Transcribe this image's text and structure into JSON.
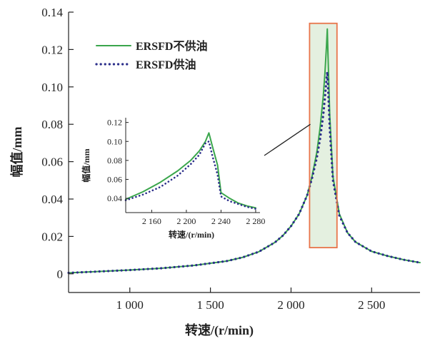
{
  "chart_data": [
    {
      "type": "line",
      "title": "",
      "xlabel": "转速/(r/min)",
      "ylabel": "幅值/mm",
      "xlim": [
        620,
        2800
      ],
      "ylim": [
        -0.01,
        0.14
      ],
      "x_ticks": [
        1000,
        1500,
        2000,
        2500
      ],
      "x_tick_labels": [
        "1 000",
        "1 500",
        "2 000",
        "2 500"
      ],
      "y_ticks": [
        0,
        0.02,
        0.04,
        0.06,
        0.08,
        0.1,
        0.12,
        0.14
      ],
      "y_tick_labels": [
        "0",
        "0.02",
        "0.04",
        "0.06",
        "0.08",
        "0.10",
        "0.12",
        "0.14"
      ],
      "legend_position": "top-left",
      "grid": false,
      "series": [
        {
          "name": "ERSFD不供油",
          "color": "#3aa64c",
          "style": "solid",
          "x": [
            620,
            800,
            1000,
            1200,
            1400,
            1600,
            1700,
            1800,
            1900,
            1950,
            2000,
            2050,
            2100,
            2130,
            2160,
            2180,
            2200,
            2210,
            2220,
            2225,
            2230,
            2240,
            2260,
            2300,
            2350,
            2400,
            2500,
            2600,
            2700,
            2800
          ],
          "y": [
            0.0005,
            0.0012,
            0.002,
            0.003,
            0.0045,
            0.0068,
            0.0088,
            0.0118,
            0.0168,
            0.0205,
            0.0255,
            0.032,
            0.042,
            0.052,
            0.065,
            0.078,
            0.095,
            0.107,
            0.122,
            0.131,
            0.115,
            0.085,
            0.052,
            0.032,
            0.022,
            0.017,
            0.012,
            0.0095,
            0.0075,
            0.006
          ]
        },
        {
          "name": "ERSFD供油",
          "color": "#2b2e8a",
          "style": "dotted",
          "x": [
            620,
            800,
            1000,
            1200,
            1400,
            1600,
            1700,
            1800,
            1900,
            1950,
            2000,
            2050,
            2100,
            2130,
            2160,
            2180,
            2200,
            2210,
            2220,
            2225,
            2230,
            2240,
            2260,
            2300,
            2350,
            2400,
            2500,
            2600,
            2700,
            2800
          ],
          "y": [
            0.0005,
            0.0012,
            0.002,
            0.003,
            0.0045,
            0.0068,
            0.0088,
            0.0118,
            0.0168,
            0.0205,
            0.0255,
            0.032,
            0.042,
            0.051,
            0.062,
            0.072,
            0.085,
            0.094,
            0.104,
            0.108,
            0.099,
            0.078,
            0.05,
            0.031,
            0.022,
            0.017,
            0.012,
            0.0095,
            0.0075,
            0.006
          ]
        }
      ]
    },
    {
      "type": "line",
      "title": "",
      "xlabel": "转速/(r/min)",
      "ylabel": "幅值/mm",
      "xlim": [
        2130,
        2285
      ],
      "ylim": [
        0.025,
        0.125
      ],
      "x_ticks": [
        2160,
        2200,
        2240,
        2280
      ],
      "x_tick_labels": [
        "2 160",
        "2 200",
        "2 240",
        "2 280"
      ],
      "y_ticks": [
        0.04,
        0.06,
        0.08,
        0.1,
        0.12
      ],
      "y_tick_labels": [
        "0.04",
        "0.06",
        "0.08",
        "0.10",
        "0.12"
      ],
      "grid": false,
      "series": [
        {
          "name": "ERSFD不供油",
          "color": "#3aa64c",
          "style": "solid",
          "x": [
            2130,
            2150,
            2170,
            2190,
            2205,
            2215,
            2222,
            2226,
            2230,
            2236,
            2240,
            2250,
            2260,
            2270,
            2280
          ],
          "y": [
            0.039,
            0.047,
            0.057,
            0.069,
            0.08,
            0.09,
            0.1,
            0.109,
            0.095,
            0.075,
            0.046,
            0.04,
            0.035,
            0.032,
            0.03
          ]
        },
        {
          "name": "ERSFD供油",
          "color": "#2b2e8a",
          "style": "dotted",
          "x": [
            2130,
            2150,
            2170,
            2190,
            2205,
            2215,
            2222,
            2226,
            2230,
            2236,
            2240,
            2250,
            2260,
            2270,
            2280
          ],
          "y": [
            0.038,
            0.044,
            0.052,
            0.064,
            0.076,
            0.086,
            0.098,
            0.1,
            0.085,
            0.065,
            0.042,
            0.037,
            0.034,
            0.031,
            0.029
          ]
        }
      ]
    }
  ],
  "annotations": {
    "highlight_region": {
      "x_range": [
        2115,
        2285
      ],
      "y_range": [
        0.014,
        0.134
      ],
      "fill": "#e4f0e0",
      "stroke": "#e8744a"
    },
    "callout_from": {
      "x": 2120,
      "y": 0.08
    }
  }
}
